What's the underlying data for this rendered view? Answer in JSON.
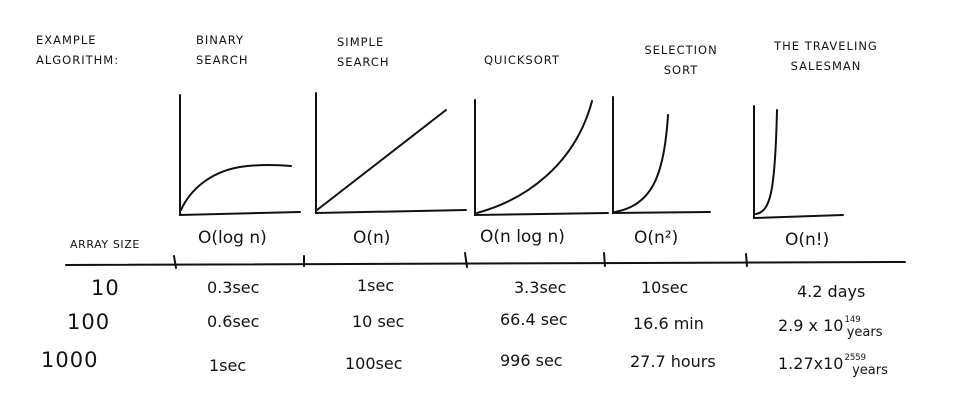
{
  "header": {
    "row_label_line1": "EXAMPLE",
    "row_label_line2": "ALGORITHM:"
  },
  "algorithms": [
    {
      "name_line1": "BINARY",
      "name_line2": "SEARCH",
      "complexity": "O(log n)"
    },
    {
      "name_line1": "SIMPLE",
      "name_line2": "SEARCH",
      "complexity": "O(n)"
    },
    {
      "name_line1": "",
      "name_line2": "QUICKSORT",
      "complexity": "O(n log n)"
    },
    {
      "name_line1": "SELECTION",
      "name_line2": "SORT",
      "complexity": "O(n²)"
    },
    {
      "name_line1": "THE TRAVELING",
      "name_line2": "SALESMAN",
      "complexity": "O(n!)"
    }
  ],
  "array_size_label": "ARRAY SIZE",
  "rows": [
    {
      "size": "10",
      "values": [
        "0.3sec",
        "1sec",
        "3.3sec",
        "10sec",
        "4.2 days"
      ]
    },
    {
      "size": "100",
      "values": [
        "0.6sec",
        "10 sec",
        "66.4 sec",
        "16.6 min",
        "2.9 x 10"
      ],
      "last_sup": "149",
      "last_sub": "years"
    },
    {
      "size": "1000",
      "values": [
        "1sec",
        "100sec",
        "996 sec",
        "27.7 hours",
        "1.27x10"
      ],
      "last_sup": "2559",
      "last_sub": "years"
    }
  ]
}
